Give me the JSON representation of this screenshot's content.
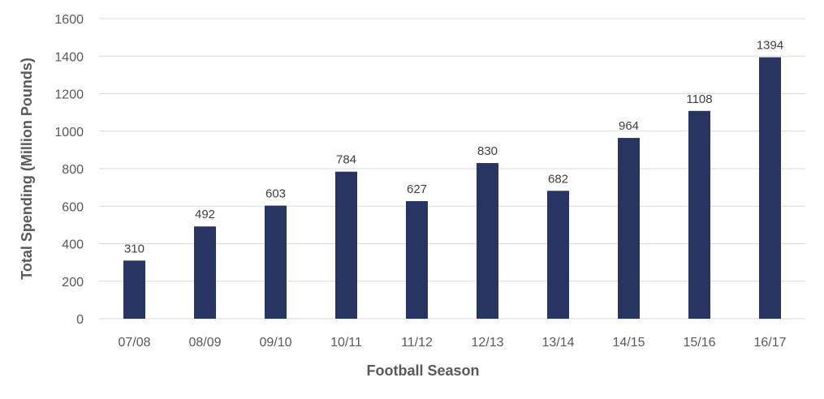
{
  "chart_data": {
    "type": "bar",
    "categories": [
      "07/08",
      "08/09",
      "09/10",
      "10/11",
      "11/12",
      "12/13",
      "13/14",
      "14/15",
      "15/16",
      "16/17"
    ],
    "values": [
      310,
      492,
      603,
      784,
      627,
      830,
      682,
      964,
      1108,
      1394
    ],
    "data_labels": [
      "310",
      "492",
      "603",
      "784",
      "627",
      "830",
      "682",
      "964",
      "1108",
      "1394"
    ],
    "xlabel": "Football Season",
    "ylabel": "Total Spending (Million Pounds)",
    "ylim": [
      0,
      1600
    ],
    "yticks": [
      0,
      200,
      400,
      600,
      800,
      1000,
      1200,
      1400,
      1600
    ],
    "grid": true,
    "legend": "none",
    "bar_color": "#283562"
  }
}
